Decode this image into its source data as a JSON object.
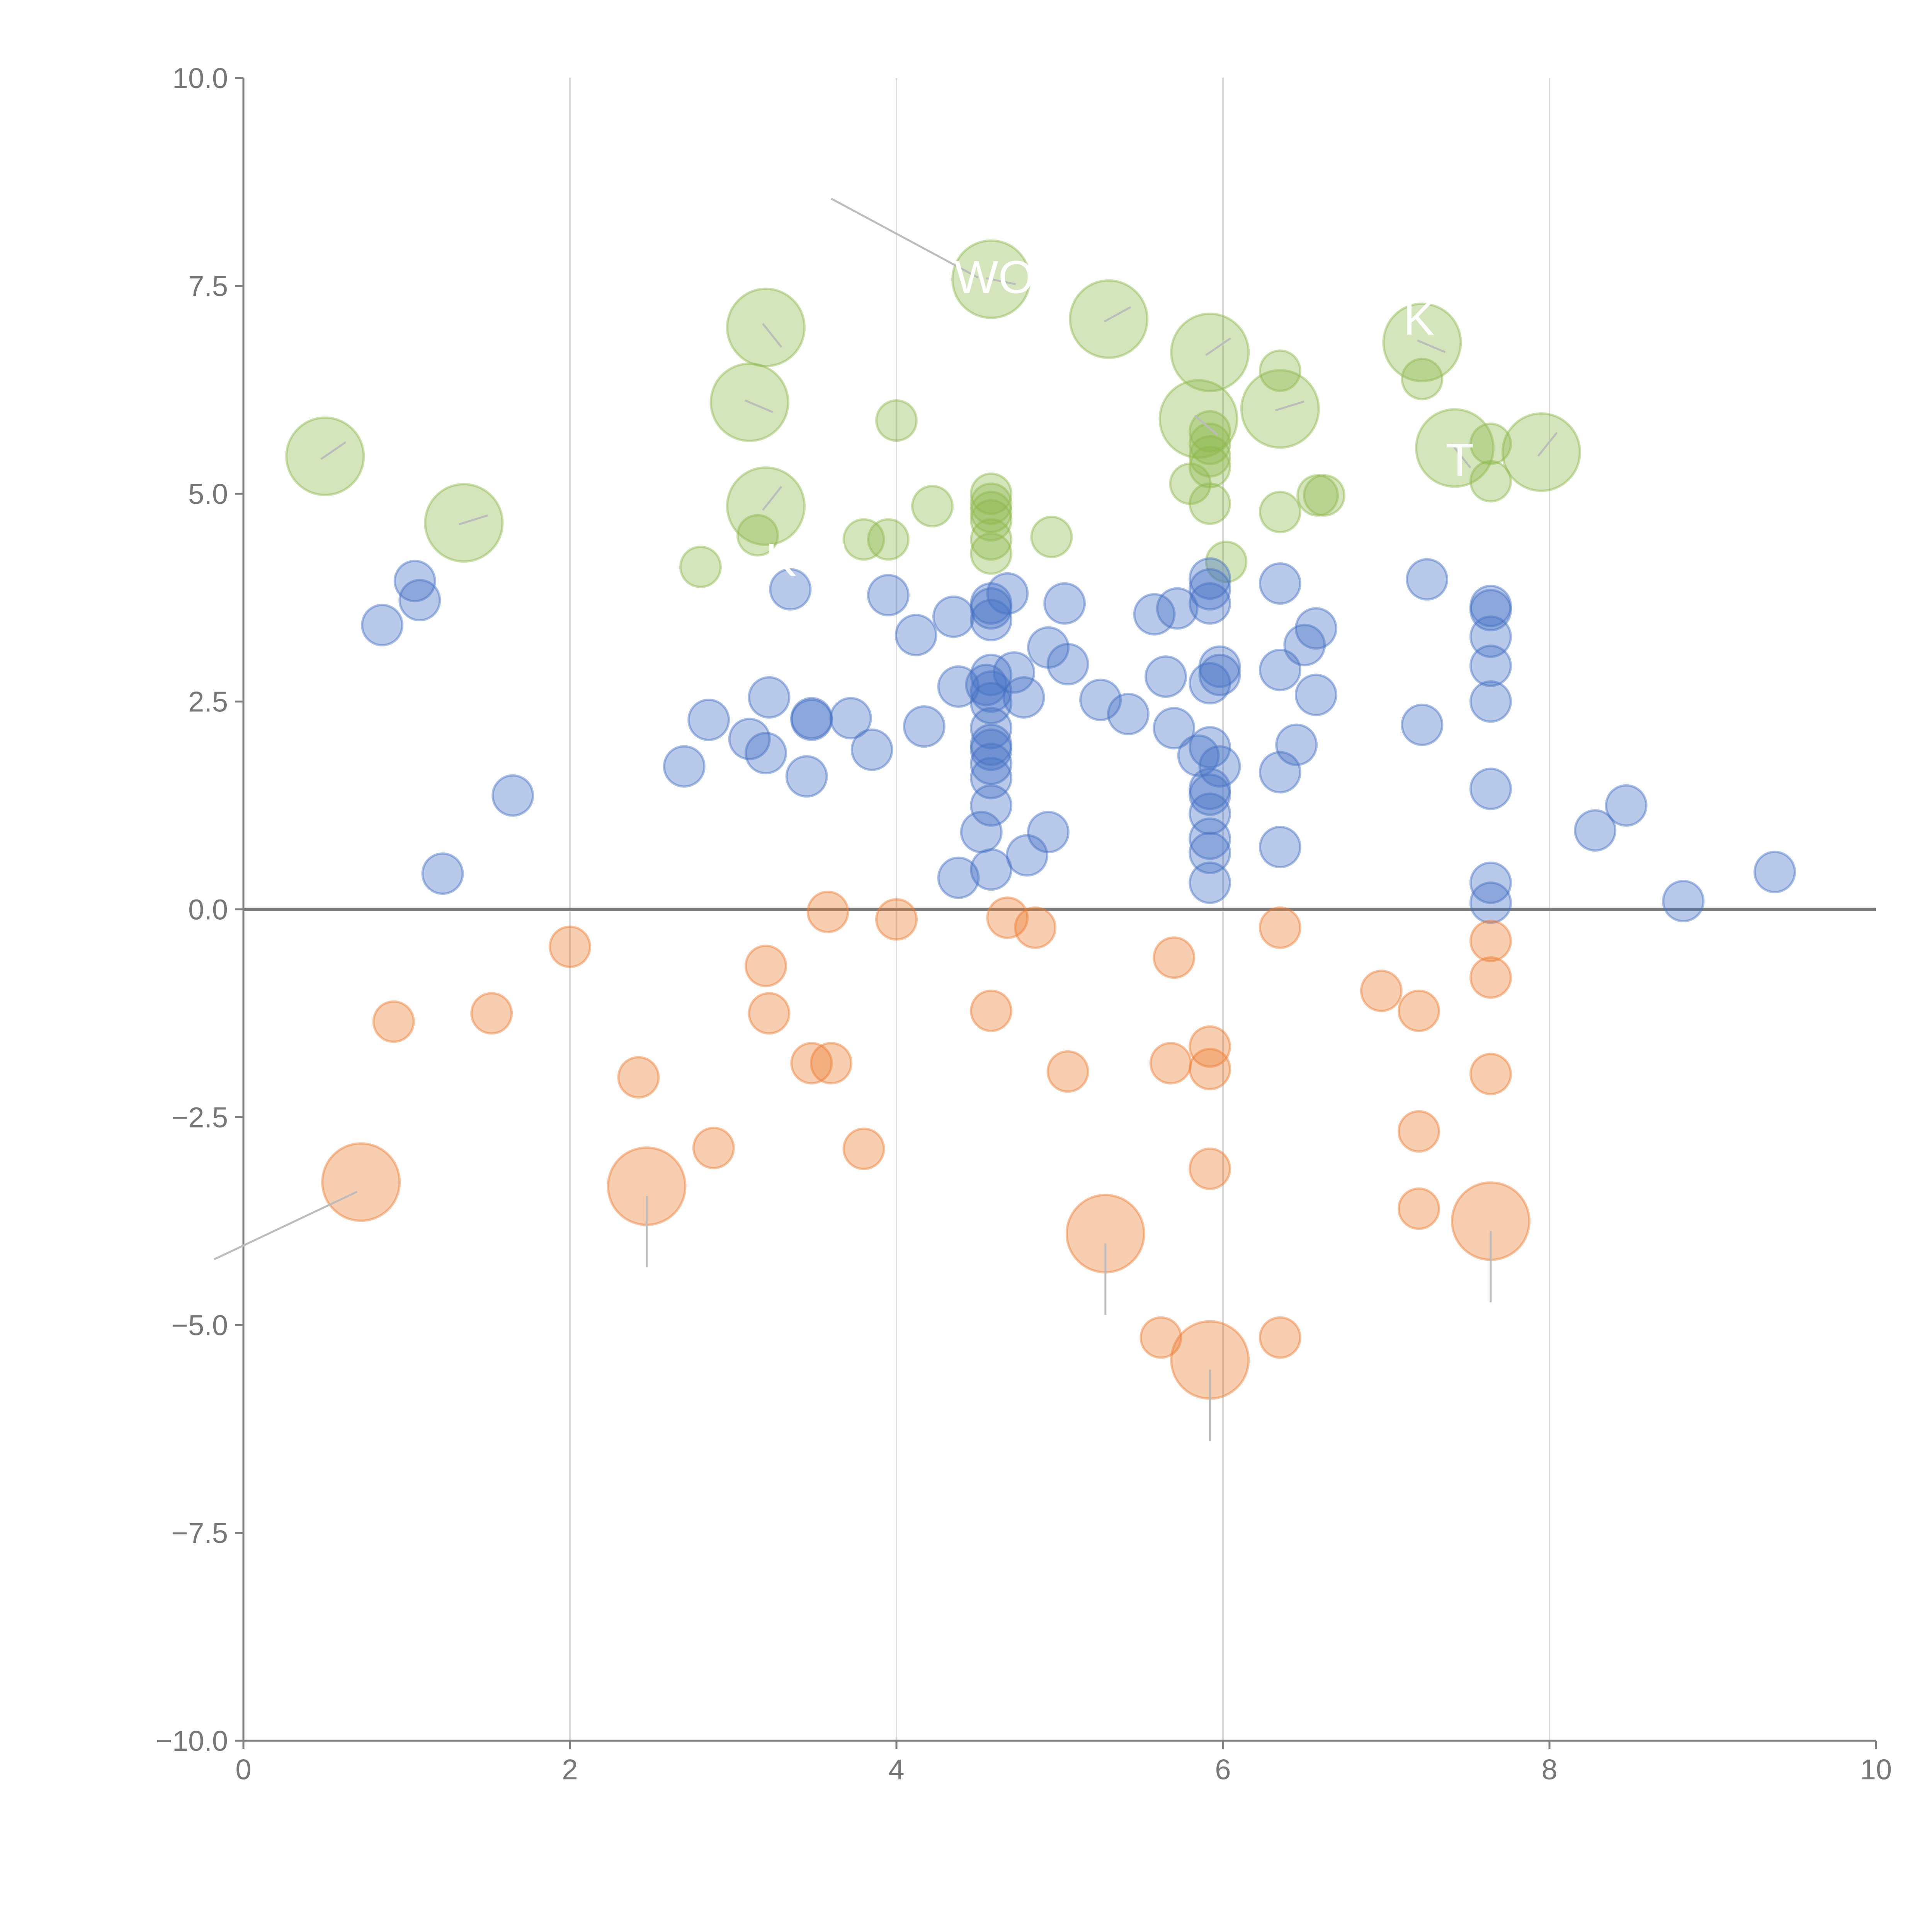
{
  "chart_data": {
    "type": "scatter",
    "title": "",
    "xlabel": "",
    "ylabel": "",
    "xlim": [
      0,
      10
    ],
    "ylim": [
      -10,
      10
    ],
    "x_ticks": [
      "0",
      "2",
      "4",
      "6",
      "8",
      "10"
    ],
    "y_ticks": [
      "10.0",
      "7.5",
      "5.0",
      "2.5",
      "0.0",
      "−2.5",
      "−5.0",
      "−7.5",
      "−10.0"
    ],
    "grid": "vertical",
    "legend": "none",
    "colors": {
      "blue": "#4472c4",
      "orange": "#ed7d31",
      "green": "#8db84b"
    },
    "series": [
      {
        "name": "green",
        "color": "#8db84b",
        "points": [
          [
            0.5,
            5.45,
            2
          ],
          [
            1.35,
            4.65,
            2
          ],
          [
            2.8,
            4.12,
            1
          ],
          [
            3.1,
            6.1,
            2
          ],
          [
            3.2,
            7.0,
            2
          ],
          [
            3.2,
            4.85,
            2
          ],
          [
            3.15,
            4.5,
            1
          ],
          [
            3.8,
            4.45,
            1
          ],
          [
            3.95,
            4.45,
            1
          ],
          [
            4.0,
            5.88,
            1
          ],
          [
            4.22,
            4.85,
            1
          ],
          [
            4.58,
            7.58,
            2
          ],
          [
            4.58,
            5.0,
            1
          ],
          [
            4.58,
            4.88,
            1
          ],
          [
            4.58,
            4.78,
            1
          ],
          [
            4.58,
            4.68,
            1
          ],
          [
            4.58,
            4.45,
            1
          ],
          [
            4.58,
            4.28,
            1
          ],
          [
            4.95,
            4.48,
            1
          ],
          [
            5.3,
            7.1,
            2
          ],
          [
            5.85,
            5.9,
            2
          ],
          [
            5.92,
            6.7,
            2
          ],
          [
            5.92,
            5.75,
            1
          ],
          [
            5.92,
            5.6,
            1
          ],
          [
            5.92,
            5.45,
            1
          ],
          [
            5.92,
            5.32,
            1
          ],
          [
            5.8,
            5.12,
            1
          ],
          [
            5.92,
            4.88,
            1
          ],
          [
            6.02,
            4.18,
            1
          ],
          [
            6.35,
            6.48,
            1
          ],
          [
            6.35,
            6.02,
            2
          ],
          [
            6.35,
            4.78,
            1
          ],
          [
            6.58,
            4.98,
            1
          ],
          [
            6.62,
            4.98,
            1
          ],
          [
            7.22,
            6.38,
            1
          ],
          [
            7.22,
            6.82,
            2
          ],
          [
            7.42,
            5.55,
            2
          ],
          [
            7.64,
            5.6,
            1
          ],
          [
            7.64,
            5.15,
            1
          ],
          [
            7.95,
            5.5,
            2
          ]
        ]
      },
      {
        "name": "blue",
        "color": "#4472c4",
        "points": [
          [
            0.85,
            3.42,
            1
          ],
          [
            1.05,
            3.95,
            1
          ],
          [
            1.08,
            3.72,
            1
          ],
          [
            1.22,
            0.43,
            1
          ],
          [
            1.65,
            1.37,
            1
          ],
          [
            2.7,
            1.72,
            1
          ],
          [
            2.85,
            2.28,
            1
          ],
          [
            3.1,
            2.05,
            1
          ],
          [
            3.22,
            2.55,
            1
          ],
          [
            3.2,
            1.88,
            1
          ],
          [
            3.35,
            3.85,
            1
          ],
          [
            3.45,
            1.6,
            1
          ],
          [
            3.48,
            2.28,
            1
          ],
          [
            3.48,
            2.3,
            1
          ],
          [
            3.72,
            2.3,
            1
          ],
          [
            3.85,
            1.92,
            1
          ],
          [
            3.95,
            3.78,
            1
          ],
          [
            4.12,
            3.3,
            1
          ],
          [
            4.17,
            2.2,
            1
          ],
          [
            4.35,
            3.52,
            1
          ],
          [
            4.38,
            2.68,
            1
          ],
          [
            4.38,
            0.38,
            1
          ],
          [
            4.52,
            0.93,
            1
          ],
          [
            4.55,
            2.7,
            1
          ],
          [
            4.58,
            3.68,
            1
          ],
          [
            4.58,
            3.62,
            1
          ],
          [
            4.58,
            3.48,
            1
          ],
          [
            4.58,
            2.82,
            1
          ],
          [
            4.58,
            2.62,
            1
          ],
          [
            4.58,
            2.48,
            1
          ],
          [
            4.58,
            2.18,
            1
          ],
          [
            4.58,
            1.98,
            1
          ],
          [
            4.58,
            1.92,
            1
          ],
          [
            4.58,
            1.75,
            1
          ],
          [
            4.58,
            1.58,
            1
          ],
          [
            4.58,
            1.25,
            1
          ],
          [
            4.58,
            0.48,
            1
          ],
          [
            4.68,
            3.8,
            1
          ],
          [
            4.72,
            2.85,
            1
          ],
          [
            4.78,
            2.55,
            1
          ],
          [
            4.8,
            0.65,
            1
          ],
          [
            4.93,
            3.15,
            1
          ],
          [
            4.93,
            0.93,
            1
          ],
          [
            5.03,
            3.68,
            1
          ],
          [
            5.05,
            2.95,
            1
          ],
          [
            5.25,
            2.52,
            1
          ],
          [
            5.42,
            2.35,
            1
          ],
          [
            5.58,
            3.55,
            1
          ],
          [
            5.65,
            2.8,
            1
          ],
          [
            5.7,
            2.18,
            1
          ],
          [
            5.72,
            3.62,
            1
          ],
          [
            5.85,
            1.85,
            1
          ],
          [
            5.92,
            3.98,
            1
          ],
          [
            5.92,
            3.85,
            1
          ],
          [
            5.92,
            3.68,
            1
          ],
          [
            5.92,
            2.72,
            1
          ],
          [
            5.92,
            1.95,
            1
          ],
          [
            5.92,
            1.45,
            1
          ],
          [
            5.92,
            1.38,
            1
          ],
          [
            5.92,
            1.15,
            1
          ],
          [
            5.92,
            0.85,
            1
          ],
          [
            5.92,
            0.68,
            1
          ],
          [
            5.92,
            0.32,
            1
          ],
          [
            5.98,
            2.92,
            1
          ],
          [
            5.98,
            2.82,
            1
          ],
          [
            5.98,
            1.72,
            1
          ],
          [
            6.35,
            3.92,
            1
          ],
          [
            6.35,
            2.88,
            1
          ],
          [
            6.35,
            1.65,
            1
          ],
          [
            6.35,
            0.75,
            1
          ],
          [
            6.45,
            1.98,
            1
          ],
          [
            6.5,
            3.18,
            1
          ],
          [
            6.57,
            3.38,
            1
          ],
          [
            6.57,
            2.58,
            1
          ],
          [
            7.22,
            2.22,
            1
          ],
          [
            7.25,
            3.97,
            1
          ],
          [
            7.64,
            3.65,
            1
          ],
          [
            7.64,
            3.6,
            1
          ],
          [
            7.64,
            3.28,
            1
          ],
          [
            7.64,
            2.93,
            1
          ],
          [
            7.64,
            2.5,
            1
          ],
          [
            7.64,
            1.45,
            1
          ],
          [
            7.64,
            0.32,
            1
          ],
          [
            7.64,
            0.08,
            1
          ],
          [
            8.28,
            0.95,
            1
          ],
          [
            8.47,
            1.25,
            1
          ],
          [
            8.82,
            0.1,
            1
          ],
          [
            9.38,
            0.45,
            1
          ]
        ]
      },
      {
        "name": "orange",
        "color": "#ed7d31",
        "points": [
          [
            0.72,
            -3.28,
            2
          ],
          [
            0.92,
            -1.35,
            1
          ],
          [
            1.52,
            -1.25,
            1
          ],
          [
            2.0,
            -0.45,
            1
          ],
          [
            2.42,
            -2.02,
            1
          ],
          [
            2.47,
            -3.33,
            2
          ],
          [
            2.88,
            -2.87,
            1
          ],
          [
            3.2,
            -0.68,
            1
          ],
          [
            3.22,
            -1.25,
            1
          ],
          [
            3.48,
            -1.85,
            1
          ],
          [
            3.6,
            -1.85,
            1
          ],
          [
            3.58,
            -0.03,
            1
          ],
          [
            3.8,
            -2.88,
            1
          ],
          [
            4.0,
            -0.12,
            1
          ],
          [
            4.58,
            -1.22,
            1
          ],
          [
            4.68,
            -0.1,
            1
          ],
          [
            4.85,
            -0.22,
            1
          ],
          [
            5.05,
            -1.95,
            1
          ],
          [
            5.28,
            -3.9,
            2
          ],
          [
            5.62,
            -5.15,
            1
          ],
          [
            5.68,
            -1.85,
            1
          ],
          [
            5.7,
            -0.58,
            1
          ],
          [
            5.92,
            -1.65,
            1
          ],
          [
            5.92,
            -1.92,
            1
          ],
          [
            5.92,
            -3.12,
            1
          ],
          [
            5.92,
            -5.42,
            2
          ],
          [
            6.35,
            -0.22,
            1
          ],
          [
            6.35,
            -5.15,
            1
          ],
          [
            6.97,
            -0.98,
            1
          ],
          [
            7.2,
            -1.22,
            1
          ],
          [
            7.2,
            -2.67,
            1
          ],
          [
            7.2,
            -3.6,
            1
          ],
          [
            7.64,
            -0.38,
            1
          ],
          [
            7.64,
            -0.82,
            1
          ],
          [
            7.64,
            -1.98,
            1
          ],
          [
            7.64,
            -3.75,
            2
          ]
        ]
      }
    ],
    "annotations": [
      {
        "text": "WO",
        "x": 4.6,
        "y": 7.6
      },
      {
        "text": "K",
        "x": 7.2,
        "y": 7.1
      },
      {
        "text": "T",
        "x": 7.45,
        "y": 5.4
      },
      {
        "text": "K M",
        "x": 3.45,
        "y": 4.2
      }
    ]
  }
}
